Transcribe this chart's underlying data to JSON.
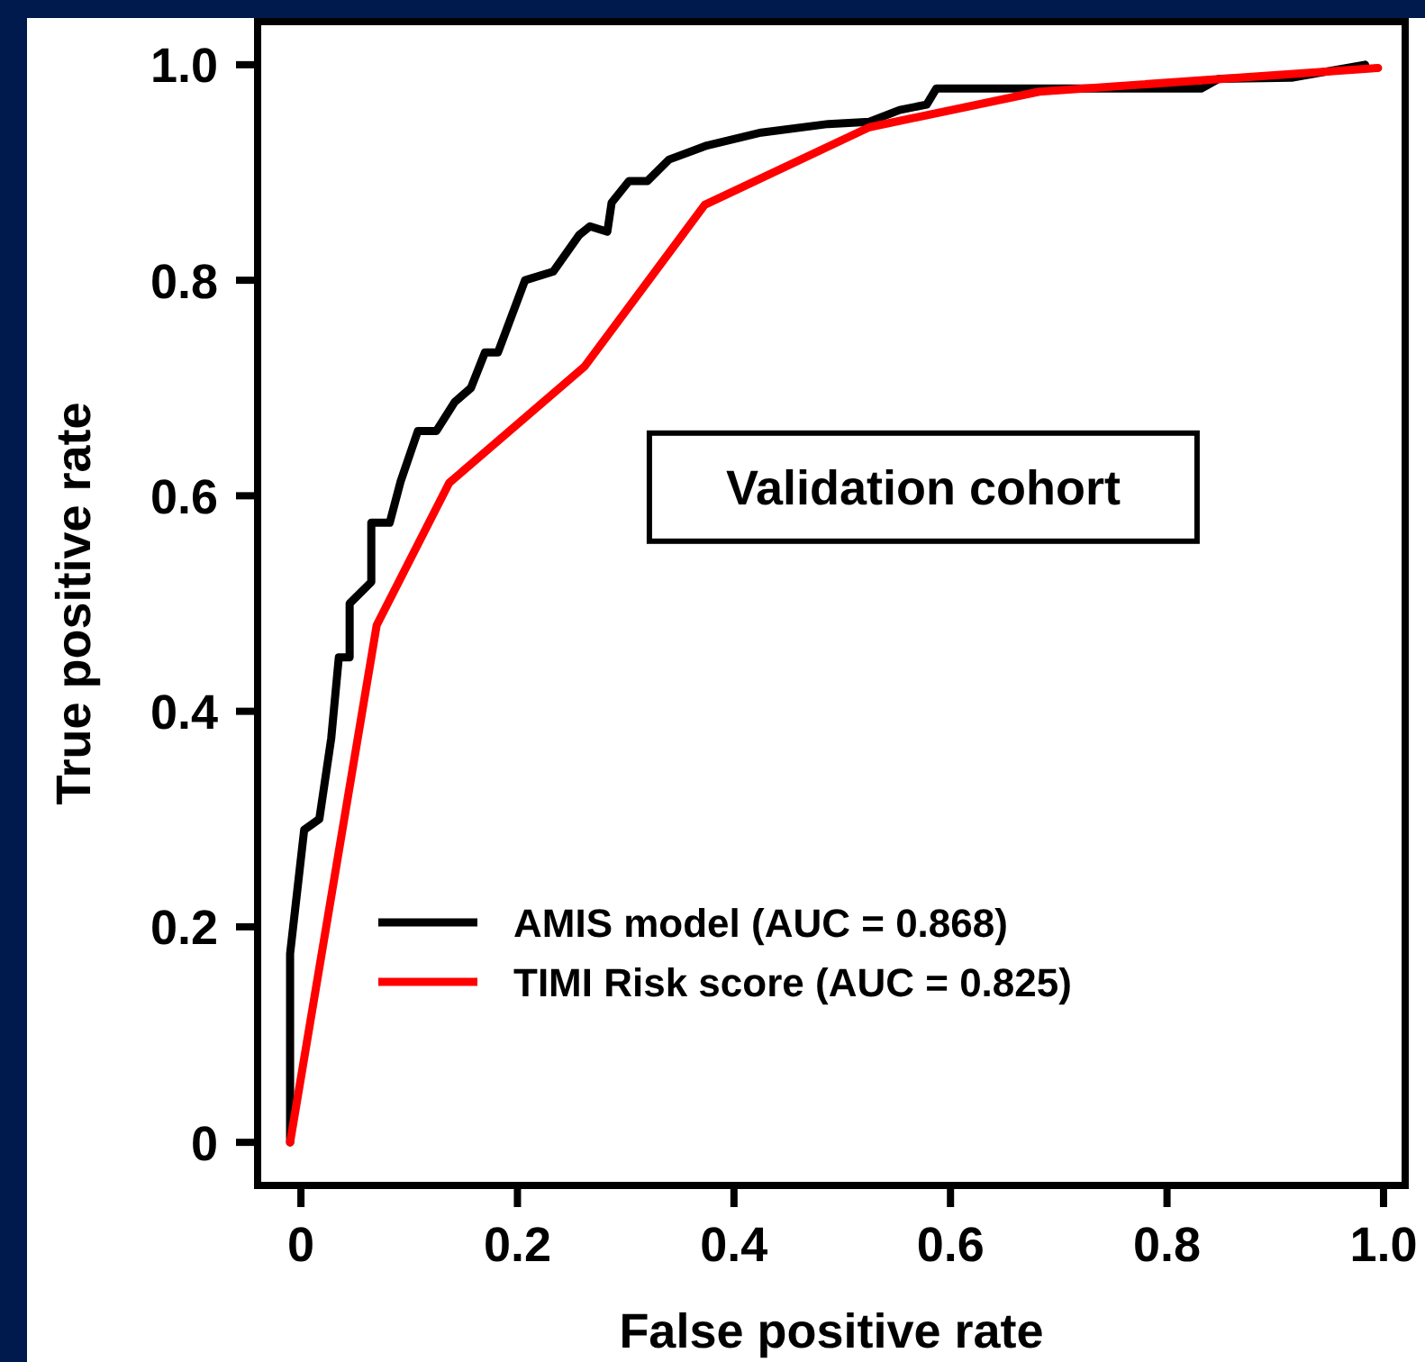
{
  "chart_data": {
    "type": "line",
    "xlabel": "False positive rate",
    "ylabel": "True positive rate",
    "xlim": [
      -0.04,
      1.02
    ],
    "ylim": [
      -0.04,
      1.04
    ],
    "xticks": [
      0,
      {
        "value": 0.2,
        "label": "0.2"
      },
      {
        "value": 0.4,
        "label": "0.4"
      },
      {
        "value": 0.6,
        "label": "0.6"
      },
      {
        "value": 0.8,
        "label": "0.8"
      },
      {
        "value": 1,
        "label": "1.0"
      }
    ],
    "yticks": [
      0,
      {
        "value": 0.2,
        "label": "0.2"
      },
      {
        "value": 0.4,
        "label": "0.4"
      },
      {
        "value": 0.6,
        "label": "0.6"
      },
      {
        "value": 0.8,
        "label": "0.8"
      },
      {
        "value": 1,
        "label": "1.0"
      }
    ],
    "grid": false,
    "legend": "bottom left",
    "marker": "none",
    "line_style": "solid",
    "annotations": [
      "Validation cohort"
    ],
    "series": [
      {
        "name": "AMIS model (AUC = 0.868)",
        "color": "#000000",
        "x": [
          -0.01,
          -0.01,
          0.003,
          0.017,
          0.028,
          0.035,
          0.045,
          0.045,
          0.065,
          0.065,
          0.082,
          0.092,
          0.108,
          0.125,
          0.142,
          0.157,
          0.17,
          0.182,
          0.207,
          0.233,
          0.257,
          0.267,
          0.283,
          0.287,
          0.303,
          0.32,
          0.34,
          0.375,
          0.425,
          0.487,
          0.525,
          0.553,
          0.578,
          0.587,
          0.832,
          0.848,
          0.915,
          0.983
        ],
        "values": [
          0,
          0.175,
          0.29,
          0.3,
          0.375,
          0.45,
          0.45,
          0.5,
          0.52,
          0.575,
          0.575,
          0.613,
          0.66,
          0.66,
          0.687,
          0.7,
          0.733,
          0.733,
          0.8,
          0.808,
          0.842,
          0.85,
          0.845,
          0.872,
          0.892,
          0.892,
          0.912,
          0.925,
          0.937,
          0.945,
          0.947,
          0.958,
          0.963,
          0.978,
          0.978,
          0.987,
          0.988,
          1.0
        ]
      },
      {
        "name": "TIMI Risk score (AUC = 0.825)",
        "color": "#ff0000",
        "x": [
          -0.01,
          0.07,
          0.137,
          0.262,
          0.373,
          0.525,
          0.682,
          0.995
        ],
        "values": [
          0,
          0.48,
          0.612,
          0.72,
          0.87,
          0.942,
          0.975,
          0.997
        ]
      }
    ]
  }
}
